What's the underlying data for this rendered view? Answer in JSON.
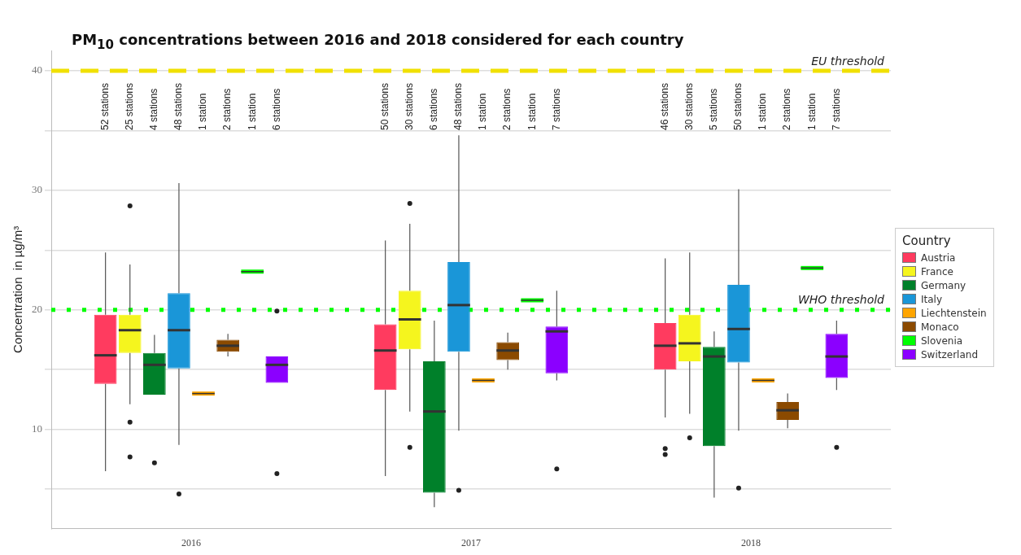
{
  "chart_data": {
    "type": "box",
    "title": "PM$_{10}$ concentrations between 2016 and 2018 considered for each country",
    "ylabel": "Concentration  in µg/m³",
    "legend_title": "Country",
    "legend": "right",
    "grid": "y",
    "categories": [
      "2016",
      "2017",
      "2018"
    ],
    "ylim": [
      1.7,
      41.7
    ],
    "yticks": [
      {
        "value": 5,
        "label": null
      },
      10,
      {
        "value": 15,
        "label": null
      },
      20,
      {
        "value": 25,
        "label": null
      },
      30,
      {
        "value": 35,
        "label": null
      },
      40
    ],
    "series": [
      {
        "name": "Austria",
        "color": "#ff3b5f",
        "boxes": [
          {
            "low": 6.5,
            "q1": 13.8,
            "median": 16.2,
            "q3": 19.6,
            "high": 24.8
          },
          {
            "low": 6.1,
            "q1": 13.3,
            "median": 16.6,
            "q3": 18.8,
            "high": 25.8
          },
          {
            "low": 11.0,
            "q1": 15.0,
            "median": 17.0,
            "q3": 18.9,
            "high": 24.3,
            "outliers": [
              8.4,
              7.9
            ]
          }
        ]
      },
      {
        "name": "France",
        "color": "#f5f51e",
        "boxes": [
          {
            "low": 12.1,
            "q1": 16.4,
            "median": 18.3,
            "q3": 19.6,
            "high": 23.8,
            "outliers": [
              28.7,
              10.6,
              7.7
            ]
          },
          {
            "low": 11.5,
            "q1": 16.7,
            "median": 19.2,
            "q3": 21.6,
            "high": 27.2,
            "outliers": [
              28.9,
              8.5
            ]
          },
          {
            "low": 11.3,
            "q1": 15.7,
            "median": 17.2,
            "q3": 19.6,
            "high": 24.8,
            "outliers": [
              9.3
            ]
          }
        ]
      },
      {
        "name": "Germany",
        "color": "#00802a",
        "boxes": [
          {
            "low": 12.9,
            "q1": 12.9,
            "median": 15.4,
            "q3": 16.4,
            "high": 17.9,
            "outliers": [
              7.2
            ]
          },
          {
            "low": 3.5,
            "q1": 4.7,
            "median": 11.5,
            "q3": 15.7,
            "high": 19.1
          },
          {
            "low": 4.3,
            "q1": 8.6,
            "median": 16.1,
            "q3": 16.9,
            "high": 18.2
          }
        ]
      },
      {
        "name": "Italy",
        "color": "#1a96d8",
        "boxes": [
          {
            "low": 8.7,
            "q1": 15.1,
            "median": 18.3,
            "q3": 21.4,
            "high": 30.6,
            "outliers": [
              4.6
            ]
          },
          {
            "low": 9.9,
            "q1": 16.5,
            "median": 20.4,
            "q3": 24.0,
            "high": 34.6,
            "outliers": [
              4.9
            ]
          },
          {
            "low": 9.9,
            "q1": 15.6,
            "median": 18.4,
            "q3": 22.1,
            "high": 30.1,
            "outliers": [
              5.1
            ]
          }
        ]
      },
      {
        "name": "Liechtenstein",
        "color": "#ffa500",
        "boxes": [
          {
            "low": 13.0,
            "q1": 13.0,
            "median": 13.0,
            "q3": 13.0,
            "high": 13.0
          },
          {
            "low": 14.1,
            "q1": 14.1,
            "median": 14.1,
            "q3": 14.1,
            "high": 14.1
          },
          {
            "low": 14.1,
            "q1": 14.1,
            "median": 14.1,
            "q3": 14.1,
            "high": 14.1
          }
        ]
      },
      {
        "name": "Monaco",
        "color": "#8b4a00",
        "boxes": [
          {
            "low": 16.1,
            "q1": 16.5,
            "median": 17.0,
            "q3": 17.5,
            "high": 18.0
          },
          {
            "low": 15.0,
            "q1": 15.8,
            "median": 16.6,
            "q3": 17.3,
            "high": 18.1
          },
          {
            "low": 10.1,
            "q1": 10.8,
            "median": 11.6,
            "q3": 12.3,
            "high": 13.0
          }
        ]
      },
      {
        "name": "Slovenia",
        "color": "#00ff00",
        "boxes": [
          {
            "low": 23.2,
            "q1": 23.2,
            "median": 23.2,
            "q3": 23.2,
            "high": 23.2
          },
          {
            "low": 20.8,
            "q1": 20.8,
            "median": 20.8,
            "q3": 20.8,
            "high": 20.8
          },
          {
            "low": 23.5,
            "q1": 23.5,
            "median": 23.5,
            "q3": 23.5,
            "high": 23.5
          }
        ]
      },
      {
        "name": "Switzerland",
        "color": "#8b00ff",
        "boxes": [
          {
            "low": 13.9,
            "q1": 13.9,
            "median": 15.4,
            "q3": 16.1,
            "high": 16.1,
            "outliers": [
              19.9,
              6.3
            ]
          },
          {
            "low": 14.1,
            "q1": 14.7,
            "median": 18.2,
            "q3": 18.6,
            "high": 21.6,
            "outliers": [
              6.7
            ]
          },
          {
            "low": 13.3,
            "q1": 14.3,
            "median": 16.1,
            "q3": 18.0,
            "high": 19.1,
            "outliers": [
              8.5
            ]
          }
        ]
      }
    ],
    "ref_lines": [
      {
        "axis": "y",
        "value": 40,
        "label": "EU threshold",
        "color": "#f0e000",
        "line_style": "dashed"
      },
      {
        "axis": "y",
        "value": 20,
        "label": "WHO threshold",
        "color": "#00ff00",
        "line_style": "dotted"
      }
    ],
    "annotations": [
      "52 stations",
      "25 stations",
      "4 stations",
      "48 stations",
      "1 station",
      "2 stations",
      "1 station",
      "6 stations",
      "50 stations",
      "30 stations",
      "6 stations",
      "48 stations",
      "1 station",
      "2 stations",
      "1 station",
      "7 stations",
      "46 stations",
      "30 stations",
      "5 stations",
      "50 stations",
      "1 station",
      "2 stations",
      "1 station",
      "7 stations"
    ]
  }
}
